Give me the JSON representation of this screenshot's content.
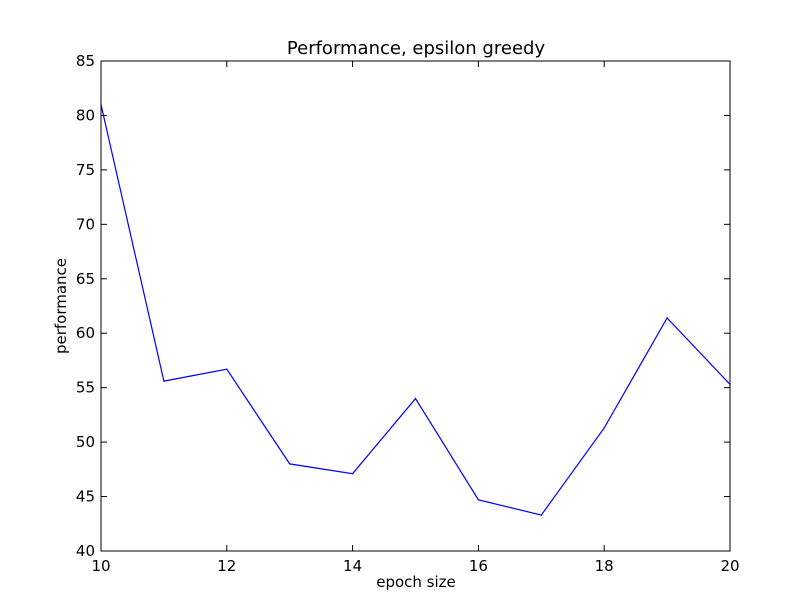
{
  "chart_data": {
    "type": "line",
    "title": "Performance, epsilon greedy",
    "xlabel": "epoch size",
    "ylabel": "performance",
    "xlim": [
      10,
      20
    ],
    "ylim": [
      40,
      85
    ],
    "x_ticks": [
      10,
      12,
      14,
      16,
      18,
      20
    ],
    "y_ticks": [
      40,
      45,
      50,
      55,
      60,
      65,
      70,
      75,
      80,
      85
    ],
    "grid": false,
    "legend": "none",
    "series": [
      {
        "color": "#0000ff",
        "x": [
          10,
          11,
          12,
          13,
          14,
          15,
          16,
          17,
          18,
          19,
          20
        ],
        "y": [
          81.0,
          55.6,
          56.7,
          48.0,
          47.1,
          54.0,
          44.7,
          43.3,
          51.3,
          61.4,
          55.3
        ]
      }
    ]
  }
}
